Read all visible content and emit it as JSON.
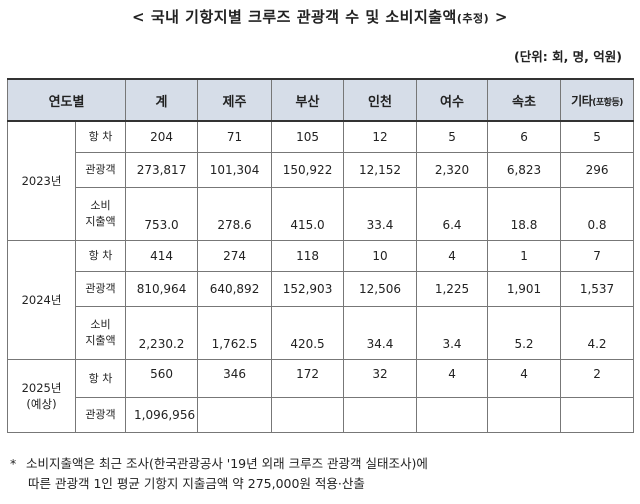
{
  "title": {
    "main": "< 국내 기항지별 크루즈 관광객 수 및 소비지출액",
    "suffix": "(추정)",
    "tail": " >"
  },
  "unit": "(단위: 회, 명, 억원)",
  "header": {
    "year": "연도별",
    "total": "계",
    "jeju": "제주",
    "busan": "부산",
    "incheon": "인천",
    "yeosu": "여수",
    "sokcho": "속초",
    "etc": "기타",
    "etc_sub": "(포항등)"
  },
  "row_labels": {
    "port_calls": "항 차",
    "tourists": "관광객",
    "spend_1": "소비",
    "spend_2": "지출액"
  },
  "years": {
    "y2023": "2023년",
    "y2024": "2024년",
    "y2025_a": "2025년",
    "y2025_b": "(예상)"
  },
  "rows": {
    "y2023": {
      "port_calls": [
        "204",
        "71",
        "105",
        "12",
        "5",
        "6",
        "5"
      ],
      "tourists": [
        "273,817",
        "101,304",
        "150,922",
        "12,152",
        "2,320",
        "6,823",
        "296"
      ],
      "spend": [
        "753.0",
        "278.6",
        "415.0",
        "33.4",
        "6.4",
        "18.8",
        "0.8"
      ]
    },
    "y2024": {
      "port_calls": [
        "414",
        "274",
        "118",
        "10",
        "4",
        "1",
        "7"
      ],
      "tourists": [
        "810,964",
        "640,892",
        "152,903",
        "12,506",
        "1,225",
        "1,901",
        "1,537"
      ],
      "spend": [
        "2,230.2",
        "1,762.5",
        "420.5",
        "34.4",
        "3.4",
        "5.2",
        "4.2"
      ]
    },
    "y2025": {
      "port_calls": [
        "560",
        "346",
        "172",
        "32",
        "4",
        "4",
        "2"
      ],
      "tourists": [
        "1,096,956"
      ]
    }
  },
  "note": {
    "mark": "*",
    "line1": "소비지출액은 최근 조사(한국관광공사 '19년 외래 크루즈 관광객 실태조사)에",
    "line2": "따른 관광객 1인 평균 기항지 지출금액 약 275,000원 적용·산출"
  }
}
